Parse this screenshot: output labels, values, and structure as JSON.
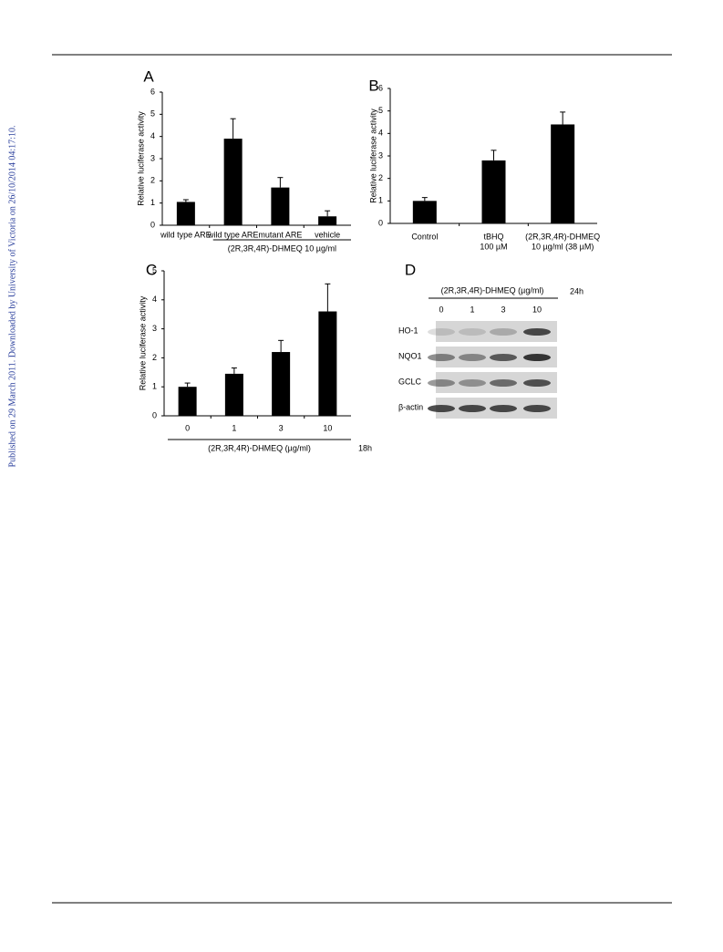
{
  "side_note": "Published on 29 March 2011. Downloaded by University of Victoria on 26/10/2014 04:17:10.",
  "chart_data": [
    {
      "type": "bar",
      "panel": "A",
      "ylabel": "Relative luciferase activity",
      "categories": [
        "wild type ARE",
        "wild type ARE",
        "mutant ARE",
        "vehicle"
      ],
      "values": [
        1.05,
        3.9,
        1.7,
        0.4
      ],
      "errors": [
        0.1,
        0.9,
        0.45,
        0.25
      ],
      "group_label": "(2R,3R,4R)-DHMEQ 10 µg/ml",
      "color": "#000000",
      "ylim": [
        0,
        6
      ],
      "yticks": [
        0,
        1,
        2,
        3,
        4,
        5,
        6
      ]
    },
    {
      "type": "bar",
      "panel": "B",
      "ylabel": "Relative luciferase activity",
      "categories": [
        [
          "Control"
        ],
        [
          "tBHQ",
          "100 µM"
        ],
        [
          "(2R,3R,4R)-DHMEQ",
          "10 µg/ml (38 µM)"
        ]
      ],
      "values": [
        1.0,
        2.8,
        4.4
      ],
      "errors": [
        0.15,
        0.45,
        0.55
      ],
      "color": "#000000",
      "ylim": [
        0,
        6
      ],
      "yticks": [
        0,
        1,
        2,
        3,
        4,
        5,
        6
      ]
    },
    {
      "type": "bar",
      "panel": "C",
      "ylabel": "Relative luciferase activity",
      "categories": [
        "0",
        "1",
        "3",
        "10"
      ],
      "values": [
        1.0,
        1.45,
        2.2,
        3.6
      ],
      "errors": [
        0.13,
        0.2,
        0.4,
        0.95
      ],
      "group_label": "(2R,3R,4R)-DHMEQ (µg/ml)",
      "time": "18h",
      "color": "#000000",
      "ylim": [
        0,
        5
      ],
      "yticks": [
        0,
        1,
        2,
        3,
        4,
        5
      ]
    }
  ],
  "blot": {
    "panel": "D",
    "treatment": "(2R,3R,4R)-DHMEQ (µg/ml)",
    "time": "24h",
    "doses": [
      "0",
      "1",
      "3",
      "10"
    ],
    "rows": [
      "HO-1",
      "NQO1",
      "GCLC",
      "β-actin"
    ]
  }
}
